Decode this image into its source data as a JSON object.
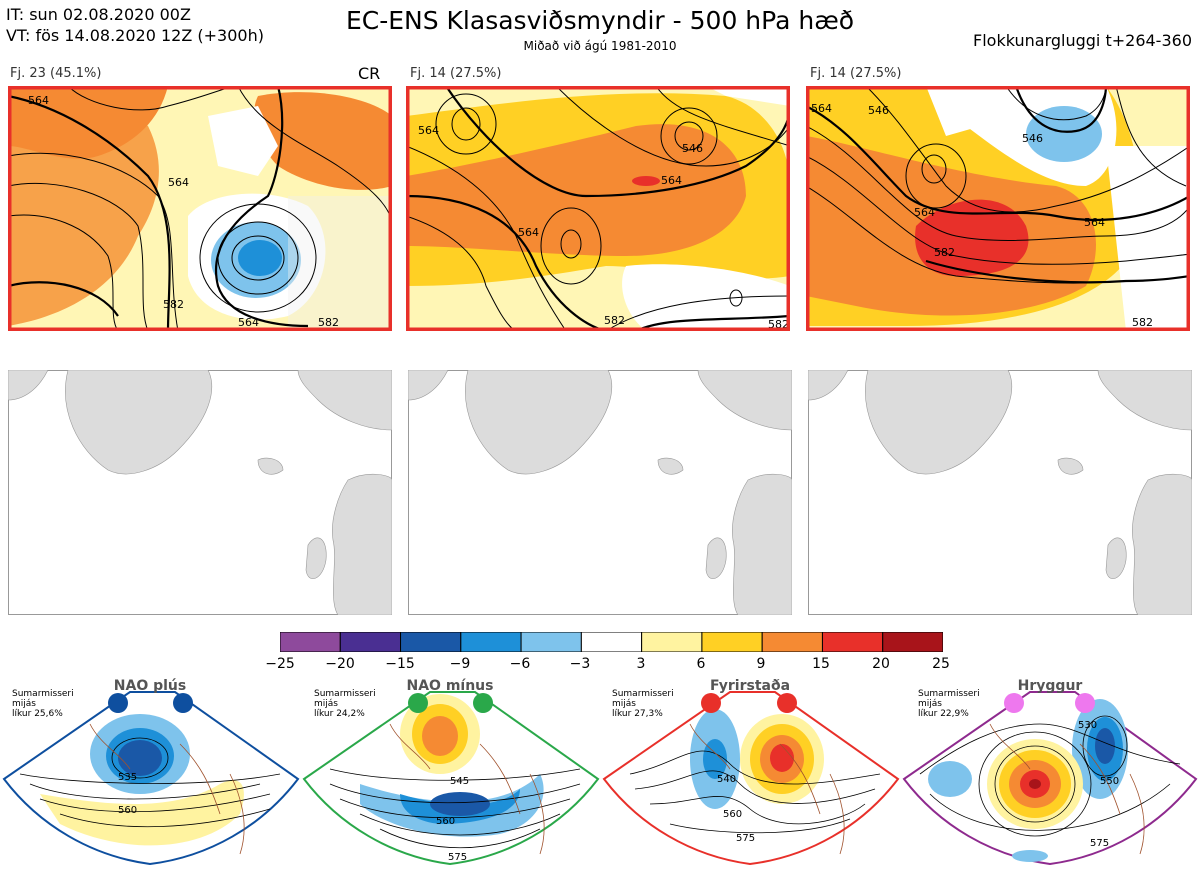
{
  "header": {
    "init_time": "IT: sun 02.08.2020 00Z",
    "valid_time": "VT: fös 14.08.2020 12Z  (+300h)",
    "title": "EC-ENS Klasasviðsmyndir - 500 hPa hæð",
    "subtitle": "Miðað við ágú 1981-2010",
    "window": "Flokkunargluggi t+264-360"
  },
  "clusters": [
    {
      "label": "Fj. 23 (45.1%)",
      "tag": "CR",
      "contours": [
        "564",
        "564",
        "582",
        "564",
        "582"
      ]
    },
    {
      "label": "Fj. 14 (27.5%)",
      "tag": "",
      "contours": [
        "564",
        "564",
        "546",
        "564",
        "582",
        "582"
      ]
    },
    {
      "label": "Fj. 14 (27.5%)",
      "tag": "",
      "contours": [
        "564",
        "546",
        "564",
        "546",
        "582",
        "564",
        "582"
      ]
    }
  ],
  "colorbar": {
    "ticks": [
      "−25",
      "−20",
      "−15",
      "−9",
      "−6",
      "−3",
      "3",
      "6",
      "9",
      "15",
      "20",
      "25"
    ],
    "colors": [
      "#8e4a9c",
      "#4a2f92",
      "#1a58a7",
      "#1e90d8",
      "#7ec3ec",
      "#ffffff",
      "#fff3a0",
      "#ffd024",
      "#f58a33",
      "#e8302a",
      "#a8141a"
    ]
  },
  "regimes": [
    {
      "name": "NAO plús",
      "info": [
        "Sumarmisseri",
        "mijás",
        "líkur 25,6%"
      ],
      "color": "#0e4f9f",
      "dot": "#0e4f9f",
      "contours": [
        "535",
        "560"
      ]
    },
    {
      "name": "NAO mínus",
      "info": [
        "Sumarmisseri",
        "mijás",
        "líkur 24,2%"
      ],
      "color": "#2aa84a",
      "dot": "#2aa84a",
      "contours": [
        "545",
        "560",
        "575"
      ]
    },
    {
      "name": "Fyrirstaða",
      "info": [
        "Sumarmisseri",
        "mijás",
        "líkur 27,3%"
      ],
      "color": "#e8302a",
      "dot": "#e8302a",
      "contours": [
        "540",
        "560",
        "575"
      ]
    },
    {
      "name": "Hryggur",
      "info": [
        "Sumarmisseri",
        "mijás",
        "líkur 22,9%"
      ],
      "color": "#8e2a8e",
      "dot": "#ee78ee",
      "contours": [
        "530",
        "550",
        "575"
      ]
    }
  ]
}
